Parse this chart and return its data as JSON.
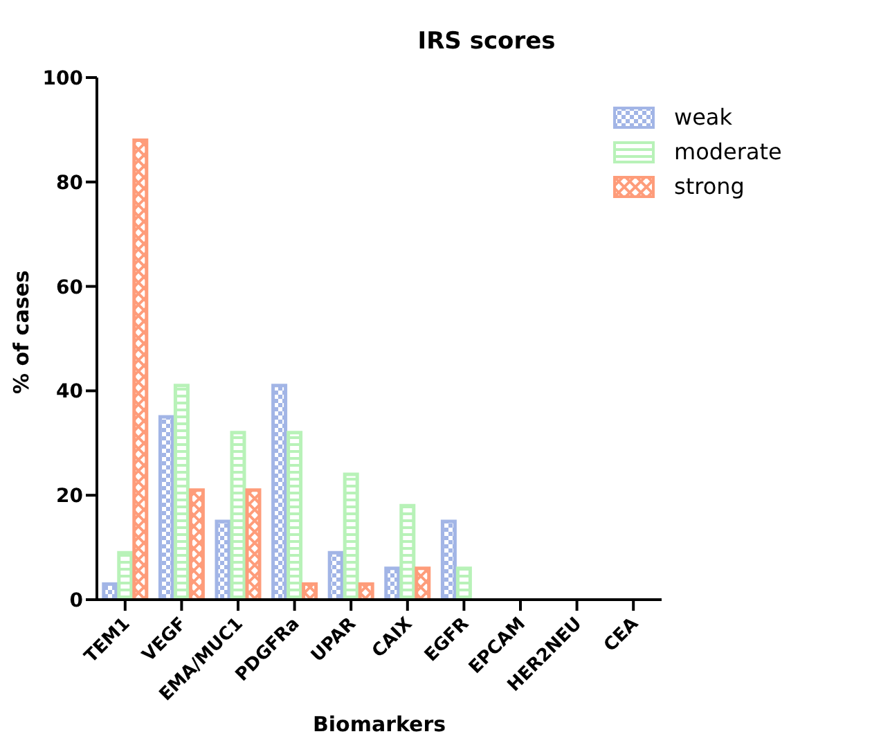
{
  "chart_data": {
    "type": "bar",
    "title": "IRS scores",
    "xlabel": "Biomarkers",
    "ylabel": "% of cases",
    "categories": [
      "TEM1",
      "VEGF",
      "EMA/MUC1",
      "PDGFRa",
      "UPAR",
      "CAIX",
      "EGFR",
      "EPCAM",
      "HER2NEU",
      "CEA"
    ],
    "series": [
      {
        "name": "weak",
        "color": "#a2b5e6",
        "values": [
          3,
          35,
          15,
          41,
          9,
          6,
          15,
          0,
          0,
          0
        ]
      },
      {
        "name": "moderate",
        "color": "#b8f2b8",
        "values": [
          9,
          41,
          32,
          32,
          24,
          18,
          6,
          0,
          0,
          0
        ]
      },
      {
        "name": "strong",
        "color": "#fe9c7a",
        "values": [
          88,
          21,
          21,
          3,
          3,
          6,
          0,
          0,
          0,
          0
        ]
      }
    ],
    "ylim": [
      0,
      100
    ],
    "yticks": [
      0,
      20,
      40,
      60,
      80,
      100
    ],
    "legend": "top right"
  }
}
